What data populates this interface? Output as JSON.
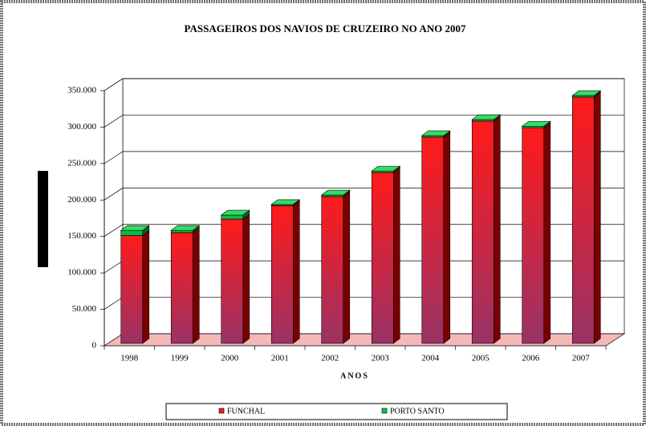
{
  "chart_data": {
    "type": "bar",
    "stacked": true,
    "three_d": true,
    "title": "PASSAGEIROS DOS NAVIOS DE CRUZEIRO NO ANO 2007",
    "x_label": "ANOS",
    "categories": [
      "1998",
      "1999",
      "2000",
      "2001",
      "2002",
      "2003",
      "2004",
      "2005",
      "2006",
      "2007"
    ],
    "series": [
      {
        "name": "FUNCHAL",
        "color": "#ff1a1a",
        "values": [
          148000,
          152000,
          170500,
          189000,
          201500,
          234500,
          283000,
          305000,
          296000,
          338000
        ]
      },
      {
        "name": "PORTO SANTO",
        "color": "#00cc44",
        "values": [
          7000,
          3000,
          5500,
          1500,
          2000,
          2000,
          2000,
          2000,
          2000,
          2000
        ]
      }
    ],
    "ylim": [
      0,
      350000
    ],
    "yticks": [
      0,
      {
        "value": 50000,
        "label": "50.000"
      },
      {
        "value": 100000,
        "label": "100.000"
      },
      {
        "value": 150000,
        "label": "150.000"
      },
      {
        "value": 200000,
        "label": "200.000"
      },
      {
        "value": 250000,
        "label": "250.000"
      },
      {
        "value": 300000,
        "label": "300.000"
      },
      {
        "value": 350000,
        "label": "350.000"
      }
    ],
    "grid": true,
    "legend": "bottom"
  }
}
